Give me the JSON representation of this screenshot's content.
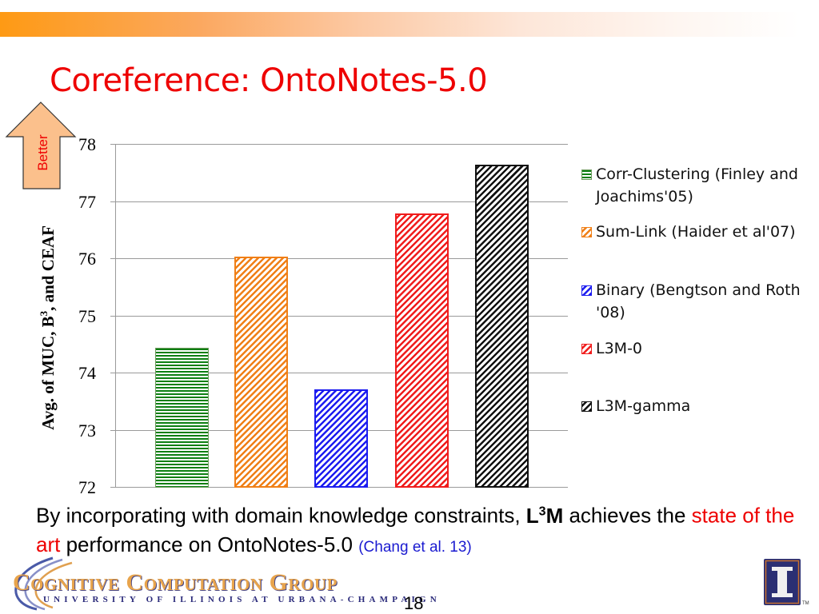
{
  "slide": {
    "title": "Coreference: OntoNotes-5.0",
    "better_label": "Better",
    "page_number": "18"
  },
  "colors": {
    "title": "#ee0000",
    "band_start": "#fe9a14",
    "corr_clustering": "#0c7f12",
    "sum_link": "#f07f16",
    "binary": "#1c1cf0",
    "l3m_0": "#f01c1c",
    "l3m_gamma": "#111111"
  },
  "chart_data": {
    "type": "bar",
    "title": "",
    "xlabel": "",
    "ylabel": "Avg. of MUC, B3, and CEAF",
    "ylabel_parts": {
      "pre": "Avg. of MUC, B",
      "sup": "3",
      "post": ", and CEAF"
    },
    "ylim": [
      72,
      78
    ],
    "yticks": [
      "78",
      "77",
      "76",
      "75",
      "74",
      "73",
      "72"
    ],
    "grid": true,
    "legend_position": "right",
    "categories": [
      "Corr-Clustering (Finley and Joachims'05)",
      "Sum-Link (Haider et al'07)",
      "Binary (Bengtson and Roth '08)",
      "L3M-0",
      "L3M-gamma"
    ],
    "series": [
      {
        "name": "Corr-Clustering (Finley and Joachims'05)",
        "values": [
          74.43
        ],
        "pattern": "horizontal",
        "color": "#0c7f12"
      },
      {
        "name": "Sum-Link (Haider et al'07)",
        "values": [
          76.03
        ],
        "pattern": "diagonal",
        "color": "#f07f16"
      },
      {
        "name": "Binary (Bengtson and Roth '08)",
        "values": [
          73.7
        ],
        "pattern": "diagonal",
        "color": "#1c1cf0"
      },
      {
        "name": "L3M-0",
        "values": [
          76.78
        ],
        "pattern": "diagonal",
        "color": "#f01c1c"
      },
      {
        "name": "L3M-gamma",
        "values": [
          77.64
        ],
        "pattern": "diagonal",
        "color": "#111111"
      }
    ]
  },
  "legend": {
    "items": [
      {
        "label": "Corr-Clustering (Finley and Joachims'05)"
      },
      {
        "label": "Sum-Link (Haider et al'07)"
      },
      {
        "label": "Binary (Bengtson and Roth '08)"
      },
      {
        "label": "L3M-0"
      },
      {
        "label": "L3M-gamma"
      }
    ]
  },
  "caption": {
    "part1": "By incorporating with domain knowledge constraints, ",
    "bold_L": "L",
    "bold_sup": "3",
    "bold_M": "M",
    "part2": " achieves the ",
    "highlight": "state of the art",
    "part3": " performance on OntoNotes-5.0 ",
    "citation": "(Chang et al. 13)"
  },
  "footer": {
    "logo_main": "Cognitive Computation Group",
    "logo_sub": "UNIVERSITY OF ILLINOIS AT URBANA-CHAMPAIGN",
    "tm": "TM"
  }
}
